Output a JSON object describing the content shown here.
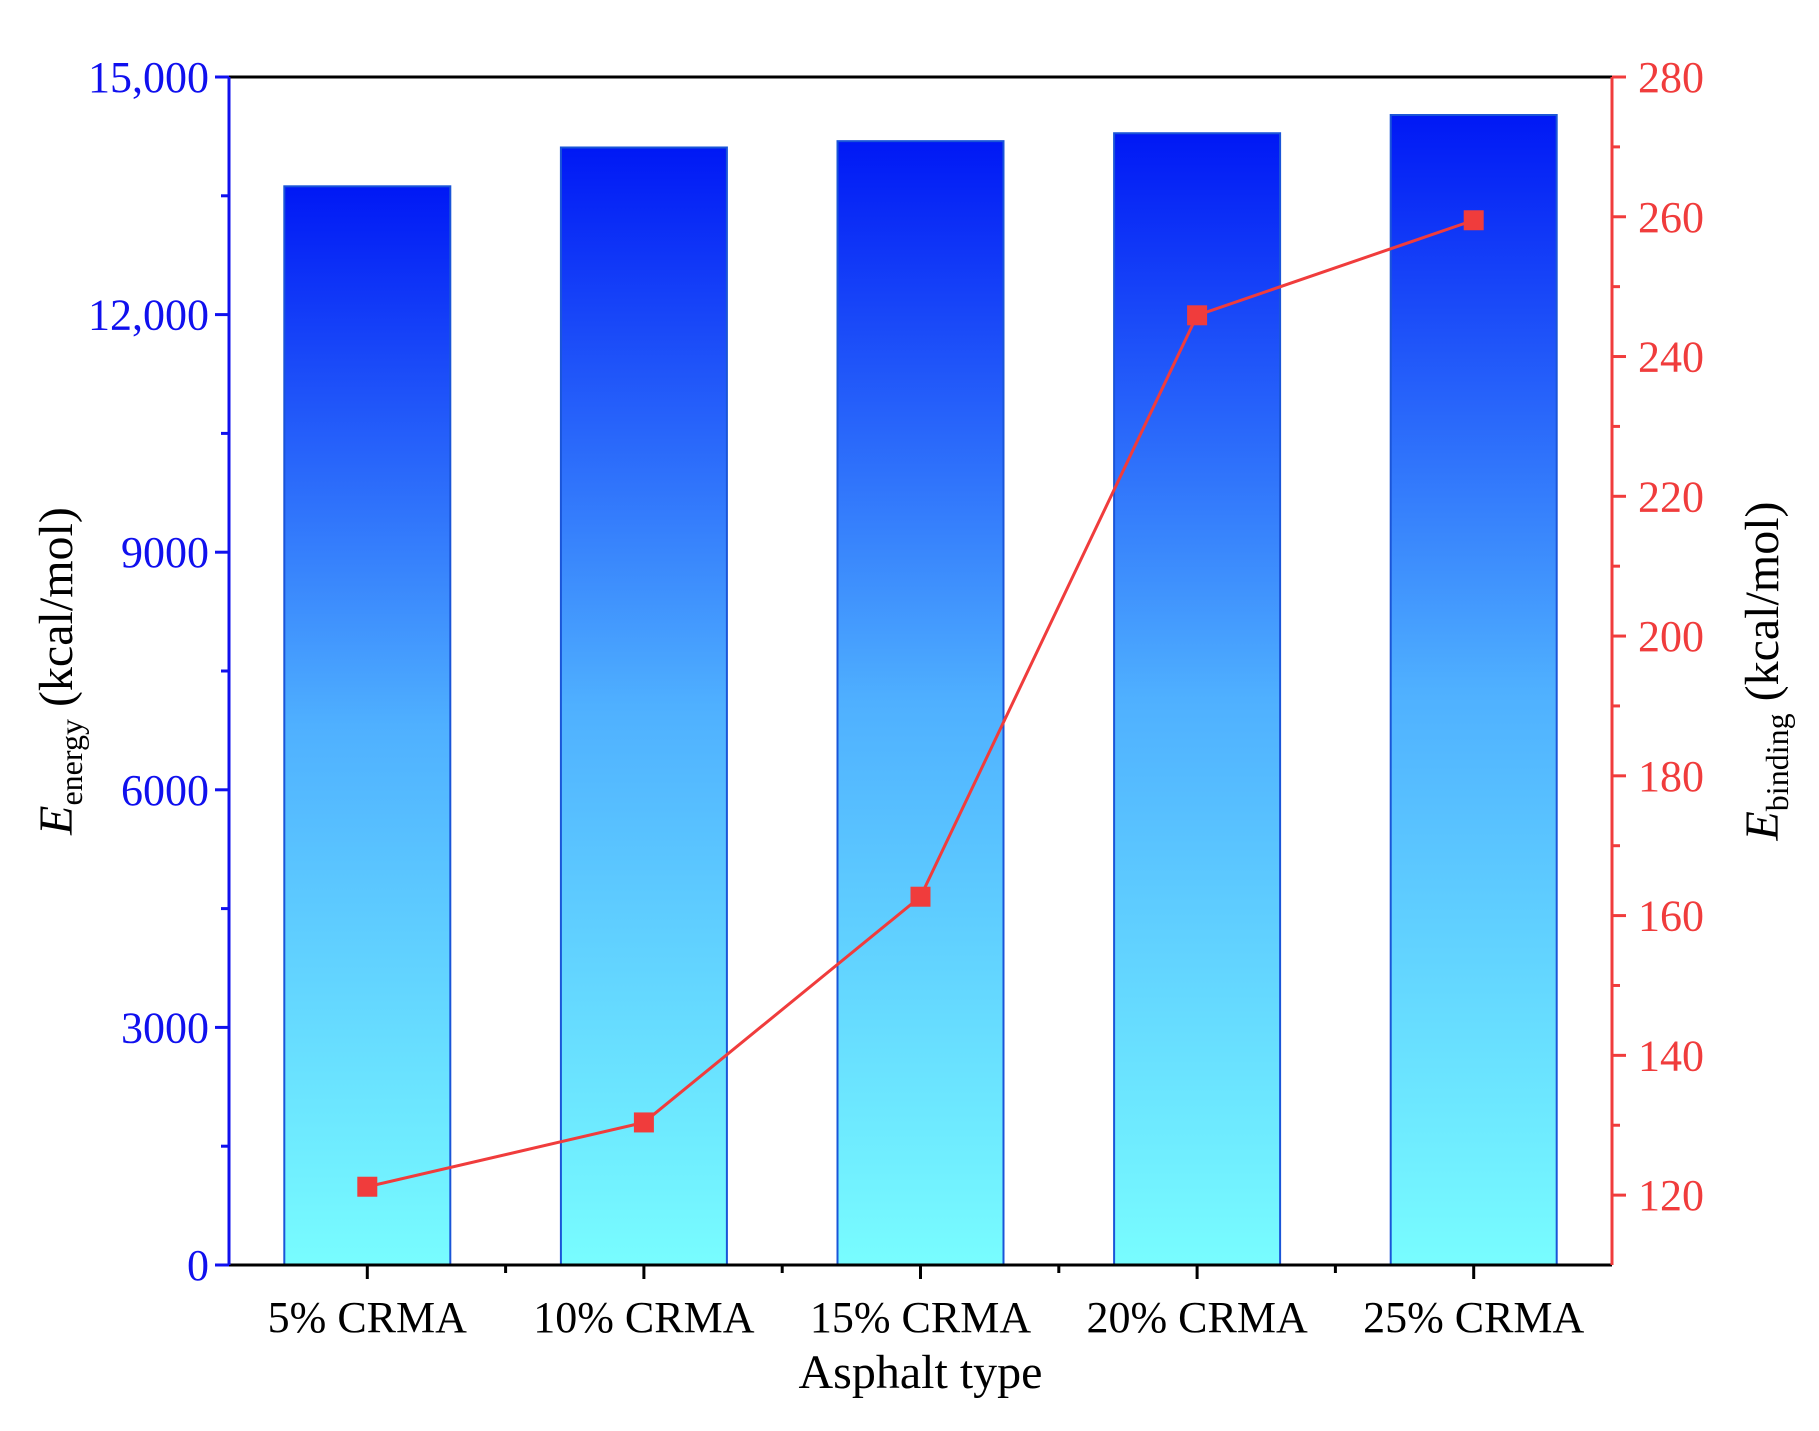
{
  "chart_data": {
    "type": "bar",
    "xlabel": "Asphalt type",
    "categories": [
      "5% CRMA",
      "10% CRMA",
      "15% CRMA",
      "20% CRMA",
      "25% CRMA"
    ],
    "series": [
      {
        "name": "E_energy",
        "type": "bar",
        "axis": "left",
        "values": [
          13620,
          14110,
          14190,
          14290,
          14520
        ]
      },
      {
        "name": "E_binding",
        "type": "line",
        "axis": "right",
        "marker": "square",
        "values": [
          121.2,
          130.4,
          162.7,
          245.9,
          259.5
        ]
      }
    ],
    "left_axis": {
      "label_symbol": "E",
      "label_subscript": "energy",
      "label_units": "(kcal/mol)",
      "ylim": [
        0,
        15000
      ],
      "ticks": [
        0,
        3000,
        6000,
        9000,
        12000,
        15000
      ],
      "tick_labels": [
        "0",
        "3000",
        "6000",
        "9000",
        "12,000",
        "15,000"
      ],
      "color": "#1010ee"
    },
    "right_axis": {
      "label_symbol": "E",
      "label_subscript": "binding",
      "label_units": "(kcal/mol)",
      "ylim": [
        110,
        280
      ],
      "ticks": [
        120,
        140,
        160,
        180,
        200,
        220,
        240,
        260,
        280
      ],
      "tick_labels": [
        "120",
        "140",
        "160",
        "180",
        "200",
        "220",
        "240",
        "260",
        "280"
      ],
      "color": "#f03c3c"
    },
    "colors": {
      "bar_top": "#0018f5",
      "bar_bottom": "#78fdff",
      "bar_edge": "#1a55d8",
      "line": "#f03c3c",
      "axis": "#000000"
    }
  }
}
